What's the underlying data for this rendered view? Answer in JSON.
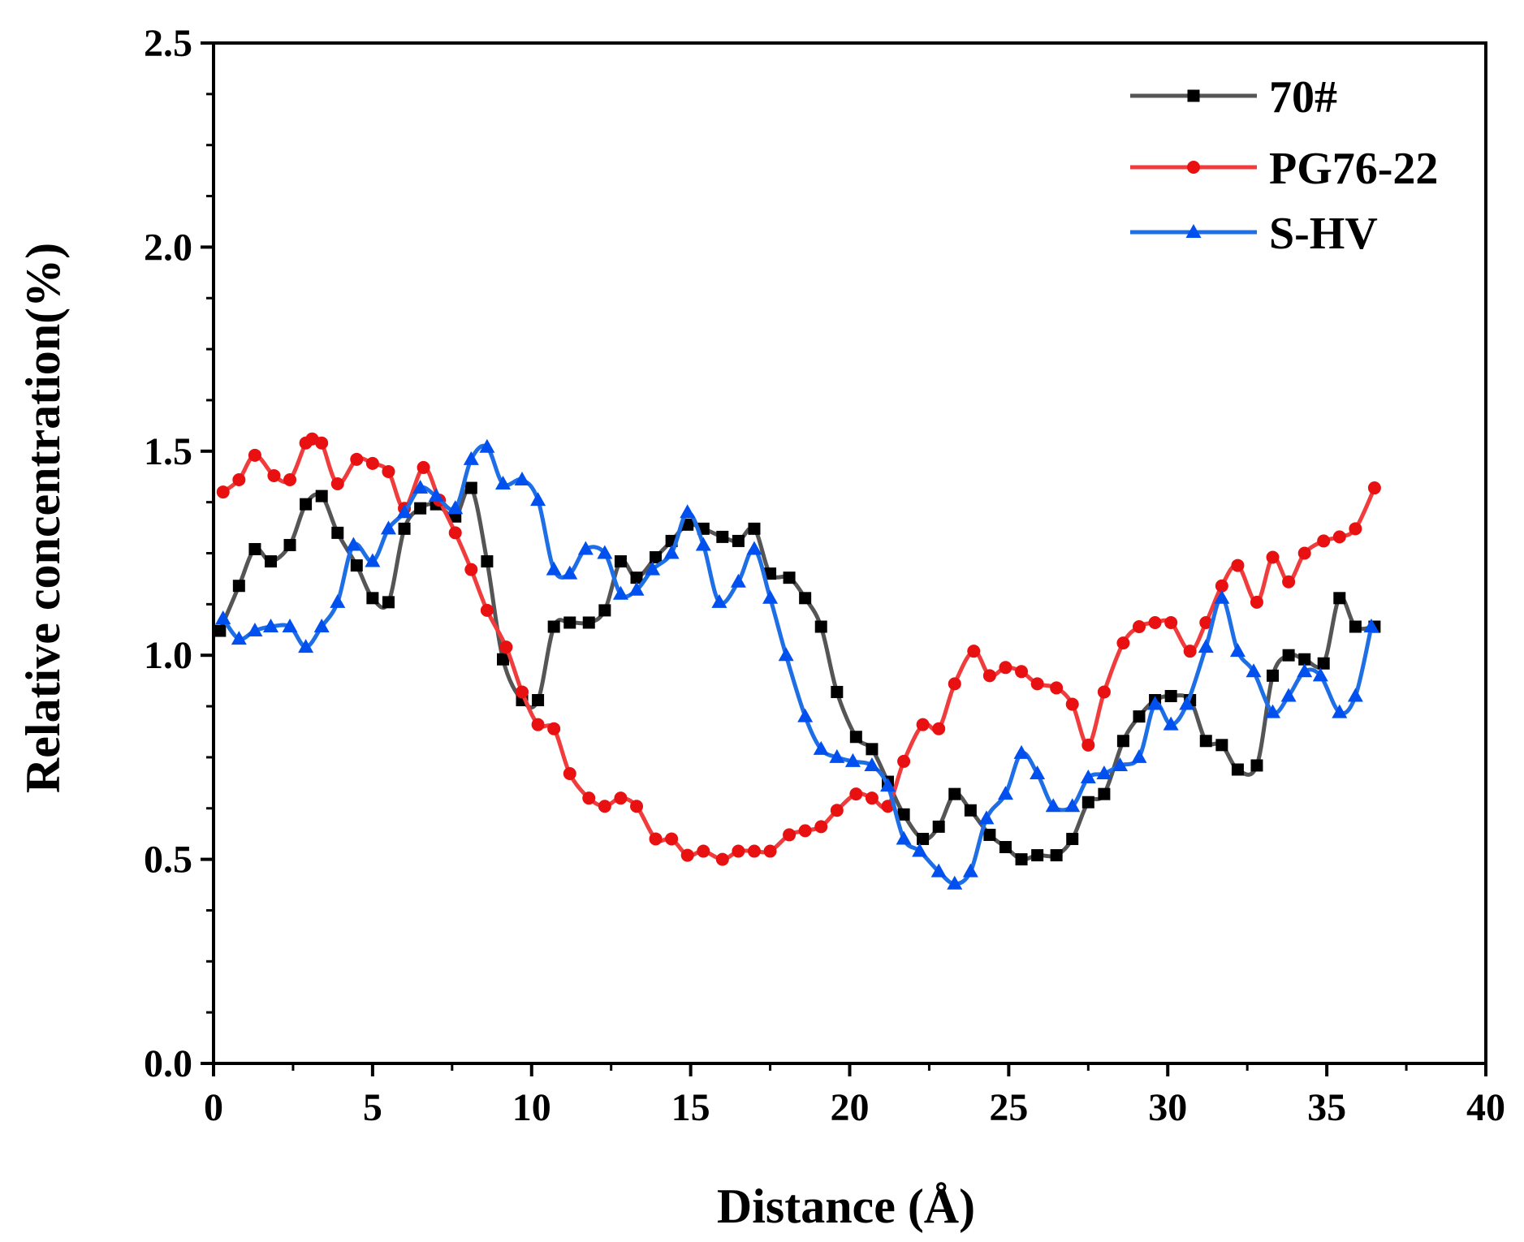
{
  "chart_data": {
    "type": "line",
    "title": "",
    "xlabel": "Distance (Å)",
    "ylabel": "Relative concentration(%)",
    "xlim": [
      0,
      40
    ],
    "ylim": [
      0,
      2.5
    ],
    "xticks": [
      0,
      5,
      10,
      15,
      20,
      25,
      30,
      35,
      40
    ],
    "xtick_labels": [
      "0",
      "5",
      "10",
      "15",
      "20",
      "25",
      "30",
      "35",
      "40"
    ],
    "yticks": [
      0,
      0.5,
      1.0,
      1.5,
      2.0,
      2.5
    ],
    "ytick_labels": [
      "0.0",
      "0.5",
      "1.0",
      "1.5",
      "2.0",
      "2.5"
    ],
    "grid": false,
    "legend_position": "top-right",
    "series": [
      {
        "name": "70#",
        "color": "#555555",
        "marker_color": "#000000",
        "marker": "square",
        "x": [
          0.2,
          0.8,
          1.3,
          1.8,
          2.4,
          2.9,
          3.4,
          3.9,
          4.5,
          5.0,
          5.5,
          6.0,
          6.5,
          7.0,
          7.6,
          8.1,
          8.6,
          9.1,
          9.7,
          10.2,
          10.7,
          11.2,
          11.8,
          12.3,
          12.8,
          13.3,
          13.9,
          14.4,
          14.9,
          15.4,
          16.0,
          16.5,
          17.0,
          17.5,
          18.1,
          18.6,
          19.1,
          19.6,
          20.2,
          20.7,
          21.2,
          21.7,
          22.3,
          22.8,
          23.3,
          23.8,
          24.4,
          24.9,
          25.4,
          25.9,
          26.5,
          27.0,
          27.5,
          28.0,
          28.6,
          29.1,
          29.6,
          30.1,
          30.7,
          31.2,
          31.7,
          32.2,
          32.8,
          33.3,
          33.8,
          34.3,
          34.9,
          35.4,
          35.9,
          36.5
        ],
        "y": [
          1.06,
          1.17,
          1.26,
          1.23,
          1.27,
          1.37,
          1.39,
          1.3,
          1.22,
          1.14,
          1.13,
          1.31,
          1.36,
          1.37,
          1.34,
          1.41,
          1.23,
          0.99,
          0.89,
          0.89,
          1.07,
          1.08,
          1.08,
          1.11,
          1.23,
          1.19,
          1.24,
          1.28,
          1.32,
          1.31,
          1.29,
          1.28,
          1.31,
          1.2,
          1.19,
          1.14,
          1.07,
          0.91,
          0.8,
          0.77,
          0.69,
          0.61,
          0.55,
          0.58,
          0.66,
          0.62,
          0.56,
          0.53,
          0.5,
          0.51,
          0.51,
          0.55,
          0.64,
          0.66,
          0.79,
          0.85,
          0.89,
          0.9,
          0.89,
          0.79,
          0.78,
          0.72,
          0.73,
          0.95,
          1.0,
          0.99,
          0.98,
          1.14,
          1.07,
          1.07
        ]
      },
      {
        "name": "PG76-22",
        "color": "#f03c3c",
        "marker_color": "#e81010",
        "marker": "circle",
        "x": [
          0.3,
          0.8,
          1.3,
          1.9,
          2.4,
          2.9,
          3.1,
          3.4,
          3.9,
          4.5,
          5.0,
          5.5,
          6.0,
          6.6,
          7.1,
          7.6,
          8.1,
          8.6,
          9.2,
          9.7,
          10.2,
          10.7,
          11.2,
          11.8,
          12.3,
          12.8,
          13.3,
          13.9,
          14.4,
          14.9,
          15.4,
          16.0,
          16.5,
          17.0,
          17.5,
          18.1,
          18.6,
          19.1,
          19.6,
          20.2,
          20.7,
          21.2,
          21.7,
          22.3,
          22.8,
          23.3,
          23.9,
          24.4,
          24.9,
          25.4,
          25.9,
          26.5,
          27.0,
          27.5,
          28.0,
          28.6,
          29.1,
          29.6,
          30.1,
          30.7,
          31.2,
          31.7,
          32.2,
          32.8,
          33.3,
          33.8,
          34.3,
          34.9,
          35.4,
          35.9,
          36.5
        ],
        "y": [
          1.4,
          1.43,
          1.49,
          1.44,
          1.43,
          1.52,
          1.53,
          1.52,
          1.42,
          1.48,
          1.47,
          1.45,
          1.36,
          1.46,
          1.38,
          1.3,
          1.21,
          1.11,
          1.02,
          0.91,
          0.83,
          0.82,
          0.71,
          0.65,
          0.63,
          0.65,
          0.63,
          0.55,
          0.55,
          0.51,
          0.52,
          0.5,
          0.52,
          0.52,
          0.52,
          0.56,
          0.57,
          0.58,
          0.62,
          0.66,
          0.65,
          0.63,
          0.74,
          0.83,
          0.82,
          0.93,
          1.01,
          0.95,
          0.97,
          0.96,
          0.93,
          0.92,
          0.88,
          0.78,
          0.91,
          1.03,
          1.07,
          1.08,
          1.08,
          1.01,
          1.08,
          1.17,
          1.22,
          1.13,
          1.24,
          1.18,
          1.25,
          1.28,
          1.29,
          1.31,
          1.41
        ]
      },
      {
        "name": "S-HV",
        "color": "#1e6ee6",
        "marker_color": "#0050f0",
        "marker": "triangle",
        "x": [
          0.3,
          0.8,
          1.3,
          1.8,
          2.4,
          2.9,
          3.4,
          3.9,
          4.4,
          5.0,
          5.5,
          6.0,
          6.5,
          7.0,
          7.6,
          8.1,
          8.6,
          9.1,
          9.7,
          10.2,
          10.7,
          11.2,
          11.7,
          12.3,
          12.8,
          13.3,
          13.8,
          14.4,
          14.9,
          15.4,
          15.9,
          16.5,
          17.0,
          17.5,
          18.0,
          18.6,
          19.1,
          19.6,
          20.1,
          20.7,
          21.2,
          21.7,
          22.2,
          22.8,
          23.3,
          23.8,
          24.3,
          24.9,
          25.4,
          25.9,
          26.4,
          27.0,
          27.5,
          28.0,
          28.5,
          29.1,
          29.6,
          30.1,
          30.6,
          31.2,
          31.7,
          32.2,
          32.7,
          33.3,
          33.8,
          34.3,
          34.8,
          35.4,
          35.9,
          36.4
        ],
        "y": [
          1.09,
          1.04,
          1.06,
          1.07,
          1.07,
          1.02,
          1.07,
          1.13,
          1.27,
          1.23,
          1.31,
          1.35,
          1.41,
          1.39,
          1.36,
          1.48,
          1.51,
          1.42,
          1.43,
          1.38,
          1.21,
          1.2,
          1.26,
          1.25,
          1.15,
          1.16,
          1.21,
          1.25,
          1.35,
          1.27,
          1.13,
          1.18,
          1.26,
          1.14,
          1.0,
          0.85,
          0.77,
          0.75,
          0.74,
          0.73,
          0.68,
          0.55,
          0.52,
          0.47,
          0.44,
          0.47,
          0.6,
          0.66,
          0.76,
          0.71,
          0.63,
          0.63,
          0.7,
          0.71,
          0.73,
          0.75,
          0.88,
          0.83,
          0.88,
          1.02,
          1.14,
          1.01,
          0.96,
          0.86,
          0.9,
          0.96,
          0.95,
          0.86,
          0.9,
          1.07
        ]
      }
    ]
  }
}
